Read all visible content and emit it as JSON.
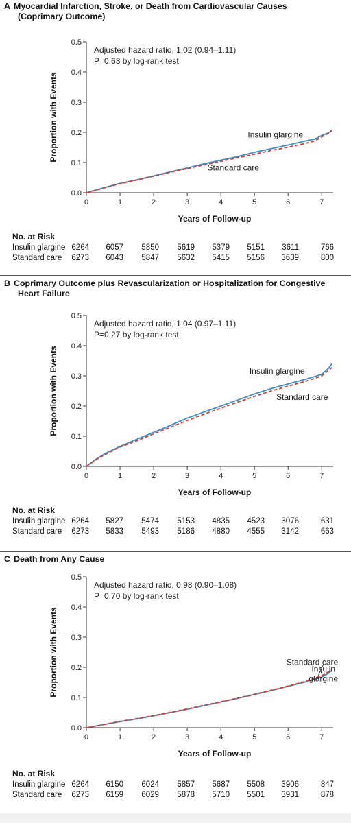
{
  "chart_data": [
    {
      "type": "line",
      "panel_letter": "A",
      "title": "Myocardial Infarction, Stroke, or Death from Cardiovascular Causes",
      "title_line2": "(Coprimary Outcome)",
      "xlabel": "Years of Follow-up",
      "ylabel": "Proportion with Events",
      "xlim": [
        0,
        7.3
      ],
      "ylim": [
        0,
        0.5
      ],
      "xticks": [
        "0",
        "1",
        "2",
        "3",
        "4",
        "5",
        "6",
        "7"
      ],
      "yticks": [
        "0.0",
        "0.1",
        "0.2",
        "0.3",
        "0.4",
        "0.5"
      ],
      "annotation_line1": "Adjusted hazard ratio, 1.02 (0.94–1.11)",
      "annotation_line2": "P=0.63 by log-rank test",
      "series": [
        {
          "name": "Insulin glargine",
          "color": "#3a8fc9",
          "style": "solid",
          "x": [
            0,
            0.5,
            1,
            1.5,
            2,
            2.5,
            3,
            3.5,
            4,
            4.5,
            5,
            5.5,
            6,
            6.5,
            6.8,
            7,
            7.2,
            7.3
          ],
          "y": [
            0,
            0.016,
            0.031,
            0.043,
            0.056,
            0.069,
            0.082,
            0.096,
            0.108,
            0.12,
            0.134,
            0.146,
            0.158,
            0.171,
            0.178,
            0.19,
            0.198,
            0.205
          ]
        },
        {
          "name": "Standard care",
          "color": "#d93a2b",
          "style": "dashed",
          "x": [
            0,
            0.5,
            1,
            1.5,
            2,
            2.5,
            3,
            3.5,
            4,
            4.5,
            5,
            5.5,
            6,
            6.5,
            6.8,
            7,
            7.2,
            7.3
          ],
          "y": [
            0,
            0.015,
            0.03,
            0.042,
            0.055,
            0.068,
            0.08,
            0.092,
            0.104,
            0.116,
            0.128,
            0.14,
            0.151,
            0.163,
            0.172,
            0.185,
            0.197,
            0.207
          ]
        }
      ],
      "curve_labels": [
        {
          "text": "Insulin glargine",
          "x": 4.8,
          "y": 0.183,
          "anchor": "start"
        },
        {
          "text": "Standard care",
          "x": 3.6,
          "y": 0.074,
          "anchor": "start"
        }
      ],
      "risk_heading": "No. at Risk",
      "risk_rows": [
        {
          "label": "Insulin glargine",
          "values": [
            "6264",
            "6057",
            "5850",
            "5619",
            "5379",
            "5151",
            "3611",
            "766"
          ]
        },
        {
          "label": "Standard care",
          "values": [
            "6273",
            "6043",
            "5847",
            "5632",
            "5415",
            "5156",
            "3639",
            "800"
          ]
        }
      ]
    },
    {
      "type": "line",
      "panel_letter": "B",
      "title": "Coprimary Outcome plus Revascularization or Hospitalization for Congestive",
      "title_line2": "Heart Failure",
      "xlabel": "Years of Follow-up",
      "ylabel": "Proportion with Events",
      "xlim": [
        0,
        7.3
      ],
      "ylim": [
        0,
        0.5
      ],
      "xticks": [
        "0",
        "1",
        "2",
        "3",
        "4",
        "5",
        "6",
        "7"
      ],
      "yticks": [
        "0.0",
        "0.1",
        "0.2",
        "0.3",
        "0.4",
        "0.5"
      ],
      "annotation_line1": "Adjusted hazard ratio, 1.04 (0.97–1.11)",
      "annotation_line2": "P=0.27 by log-rank test",
      "series": [
        {
          "name": "Insulin glargine",
          "color": "#3a8fc9",
          "style": "solid",
          "x": [
            0,
            0.3,
            0.6,
            1,
            1.5,
            2,
            2.5,
            3,
            3.5,
            4,
            4.5,
            5,
            5.5,
            6,
            6.5,
            7,
            7.2,
            7.3
          ],
          "y": [
            0,
            0.025,
            0.045,
            0.066,
            0.09,
            0.113,
            0.136,
            0.16,
            0.18,
            0.2,
            0.22,
            0.24,
            0.258,
            0.273,
            0.288,
            0.305,
            0.325,
            0.34
          ]
        },
        {
          "name": "Standard care",
          "color": "#d93a2b",
          "style": "dashed",
          "x": [
            0,
            0.3,
            0.6,
            1,
            1.5,
            2,
            2.5,
            3,
            3.5,
            4,
            4.5,
            5,
            5.5,
            6,
            6.5,
            7,
            7.2,
            7.3
          ],
          "y": [
            0,
            0.023,
            0.042,
            0.064,
            0.085,
            0.108,
            0.13,
            0.152,
            0.173,
            0.193,
            0.213,
            0.232,
            0.25,
            0.266,
            0.281,
            0.3,
            0.318,
            0.328
          ]
        }
      ],
      "curve_labels": [
        {
          "text": "Insulin glargine",
          "x": 4.85,
          "y": 0.307,
          "anchor": "start"
        },
        {
          "text": "Standard care",
          "x": 5.65,
          "y": 0.22,
          "anchor": "start"
        }
      ],
      "risk_heading": "No. at Risk",
      "risk_rows": [
        {
          "label": "Insulin glargine",
          "values": [
            "6264",
            "5827",
            "5474",
            "5153",
            "4835",
            "4523",
            "3076",
            "631"
          ]
        },
        {
          "label": "Standard care",
          "values": [
            "6273",
            "5833",
            "5493",
            "5186",
            "4880",
            "4555",
            "3142",
            "663"
          ]
        }
      ]
    },
    {
      "type": "line",
      "panel_letter": "C",
      "title": "Death from Any Cause",
      "title_line2": "",
      "xlabel": "Years of Follow-up",
      "ylabel": "Proportion with Events",
      "xlim": [
        0,
        7.3
      ],
      "ylim": [
        0,
        0.5
      ],
      "xticks": [
        "0",
        "1",
        "2",
        "3",
        "4",
        "5",
        "6",
        "7"
      ],
      "yticks": [
        "0.0",
        "0.1",
        "0.2",
        "0.3",
        "0.4",
        "0.5"
      ],
      "annotation_line1": "Adjusted hazard ratio, 0.98 (0.90–1.08)",
      "annotation_line2": "P=0.70 by log-rank test",
      "series": [
        {
          "name": "Insulin glargine",
          "color": "#3a8fc9",
          "style": "solid",
          "x": [
            0,
            0.5,
            1,
            1.5,
            2,
            2.5,
            3,
            3.5,
            4,
            4.5,
            5,
            5.5,
            6,
            6.5,
            7,
            7.2,
            7.3
          ],
          "y": [
            0,
            0.01,
            0.02,
            0.029,
            0.039,
            0.05,
            0.061,
            0.073,
            0.085,
            0.097,
            0.11,
            0.123,
            0.137,
            0.151,
            0.168,
            0.18,
            0.19
          ]
        },
        {
          "name": "Standard care",
          "color": "#d93a2b",
          "style": "dashed",
          "x": [
            0,
            0.5,
            1,
            1.5,
            2,
            2.5,
            3,
            3.5,
            4,
            4.5,
            5,
            5.5,
            6,
            6.5,
            7,
            7.2,
            7.3
          ],
          "y": [
            0,
            0.01,
            0.021,
            0.03,
            0.04,
            0.051,
            0.062,
            0.074,
            0.086,
            0.098,
            0.111,
            0.124,
            0.138,
            0.153,
            0.172,
            0.185,
            0.195
          ]
        }
      ],
      "curve_labels": [
        {
          "text": "Standard care",
          "x": 5.95,
          "y": 0.208,
          "anchor": "start"
        },
        {
          "text": "Insulin",
          "x": 7.05,
          "y": 0.185,
          "anchor": "middle"
        },
        {
          "text": "glargine",
          "x": 7.05,
          "y": 0.153,
          "anchor": "middle"
        }
      ],
      "risk_heading": "No. at Risk",
      "risk_rows": [
        {
          "label": "Insulin glargine",
          "values": [
            "6264",
            "6150",
            "6024",
            "5857",
            "5687",
            "5508",
            "3906",
            "847"
          ]
        },
        {
          "label": "Standard care",
          "values": [
            "6273",
            "6159",
            "6029",
            "5878",
            "5710",
            "5501",
            "3931",
            "878"
          ]
        }
      ]
    }
  ]
}
